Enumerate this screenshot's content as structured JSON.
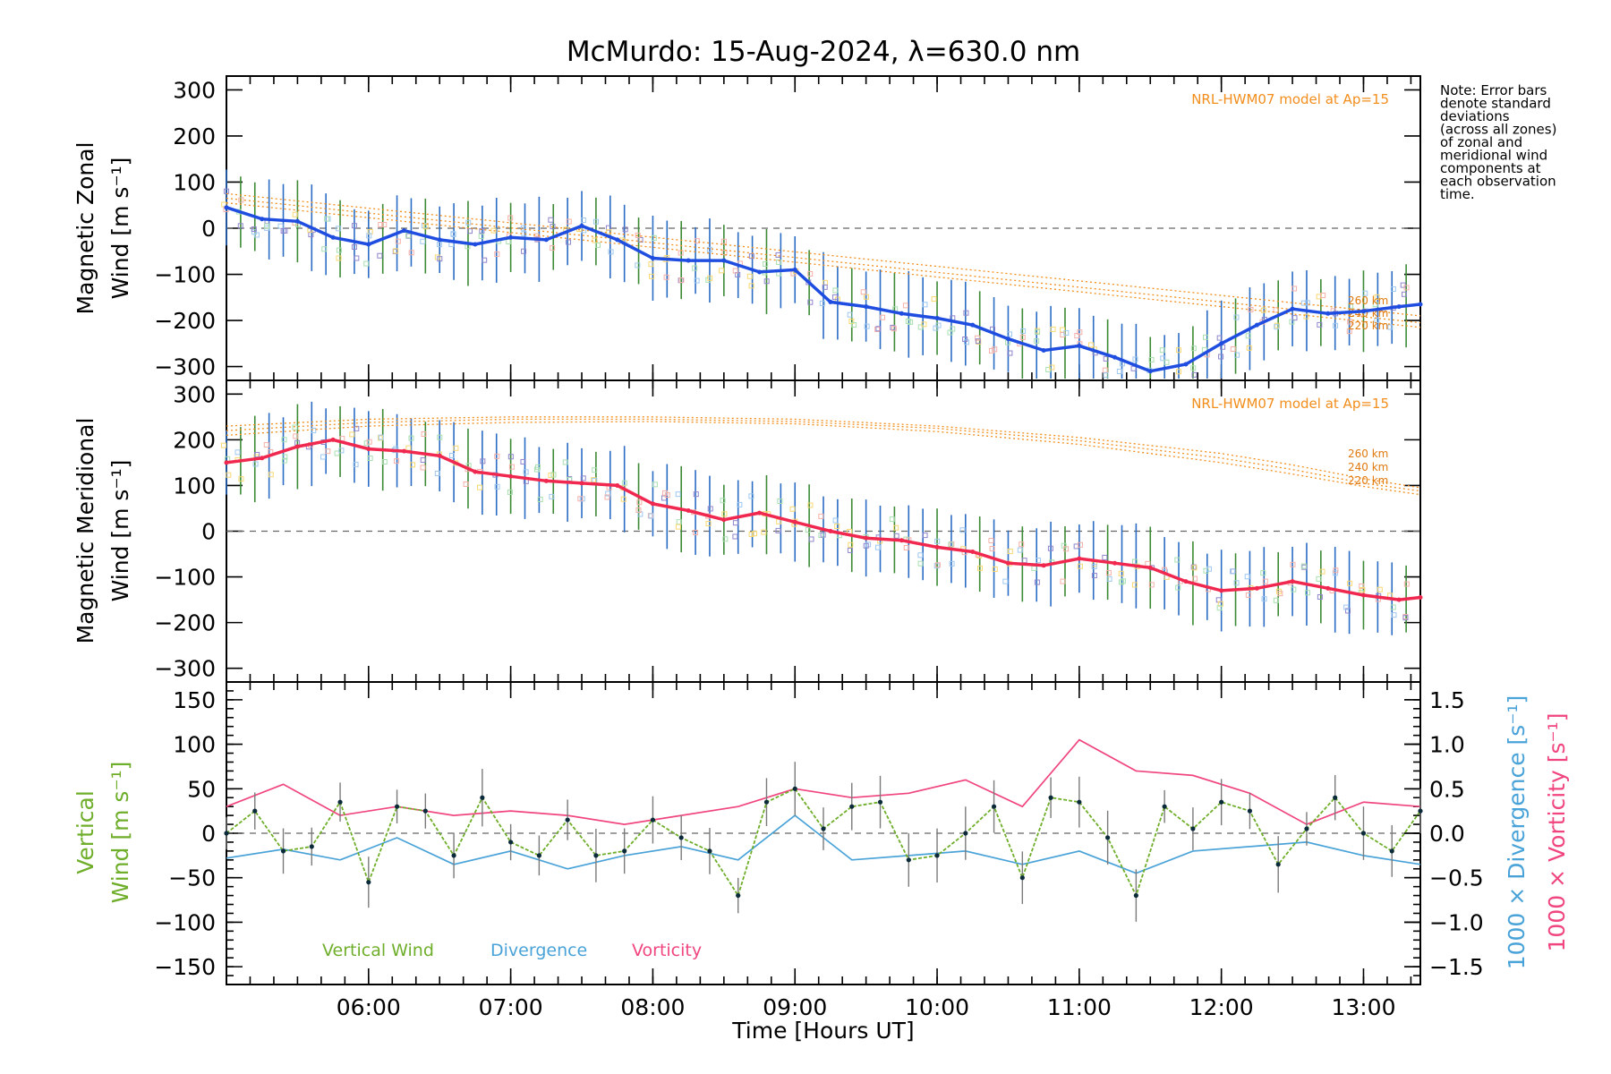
{
  "title": "McMurdo: 15-Aug-2024, λ=630.0 nm",
  "note_lines": [
    "Note: Error bars",
    "denote standard",
    "deviations",
    "(across all zones)",
    "of zonal and",
    "meridional wind",
    "components at",
    "each observation",
    "time."
  ],
  "colors": {
    "zonal": "#1f4de0",
    "meridional": "#f0284f",
    "vertical": "#6fae2a",
    "divergence": "#4aa3d8",
    "vorticity": "#f0457f",
    "model": "#f28e1c",
    "scatter": "#8f85cc",
    "errbar_blue": "#2b6cc4",
    "errbar_green": "#3d8a35",
    "errbar_gray": "#7a7a7a"
  },
  "chart_data": [
    {
      "type": "line",
      "panel": "top",
      "ylabel_lines": [
        "Magnetic Zonal",
        "Wind [m s⁻¹]"
      ],
      "ylim": [
        -330,
        330
      ],
      "yticks": [
        "300",
        "200",
        "100",
        "0",
        "−100",
        "−200",
        "−300"
      ],
      "model_label": "NRL-HWM07 model at Ap=15",
      "altitudes": [
        "260 km",
        "240 km",
        "220 km"
      ],
      "series": [
        {
          "x": [
            5.0,
            5.25,
            5.5,
            5.75,
            6.0,
            6.25,
            6.5,
            6.75,
            7.0,
            7.25,
            7.5,
            7.75,
            8.0,
            8.25,
            8.5,
            8.75,
            9.0,
            9.25,
            9.5,
            9.75,
            10.0,
            10.25,
            10.5,
            10.75,
            11.0,
            11.25,
            11.5,
            11.75,
            12.0,
            12.25,
            12.5,
            12.75,
            13.0,
            13.25,
            13.4
          ],
          "y": [
            45,
            20,
            15,
            -20,
            -35,
            -5,
            -25,
            -35,
            -20,
            -25,
            5,
            -25,
            -65,
            -70,
            -70,
            -95,
            -90,
            -160,
            -170,
            -185,
            -195,
            -210,
            -240,
            -265,
            -255,
            -280,
            -310,
            -295,
            -250,
            -210,
            -175,
            -185,
            -180,
            -170,
            -165
          ]
        }
      ],
      "model_series": [
        {
          "name": "260 km",
          "x": [
            5.0,
            13.4
          ],
          "y": [
            75,
            -190
          ]
        },
        {
          "name": "240 km",
          "x": [
            5.0,
            13.4
          ],
          "y": [
            65,
            -205
          ]
        },
        {
          "name": "220 km",
          "x": [
            5.0,
            13.4
          ],
          "y": [
            55,
            -215
          ]
        }
      ]
    },
    {
      "type": "line",
      "panel": "middle",
      "ylabel_lines": [
        "Magnetic Meridional",
        "Wind [m s⁻¹]"
      ],
      "ylim": [
        -330,
        330
      ],
      "yticks": [
        "300",
        "200",
        "100",
        "0",
        "−100",
        "−200",
        "−300"
      ],
      "model_label": "NRL-HWM07 model at Ap=15",
      "altitudes": [
        "260 km",
        "240 km",
        "220 km"
      ],
      "series": [
        {
          "x": [
            5.0,
            5.25,
            5.5,
            5.75,
            6.0,
            6.25,
            6.5,
            6.75,
            7.0,
            7.25,
            7.5,
            7.75,
            8.0,
            8.25,
            8.5,
            8.75,
            9.0,
            9.25,
            9.5,
            9.75,
            10.0,
            10.25,
            10.5,
            10.75,
            11.0,
            11.25,
            11.5,
            11.75,
            12.0,
            12.25,
            12.5,
            12.75,
            13.0,
            13.25,
            13.4
          ],
          "y": [
            150,
            160,
            185,
            200,
            180,
            175,
            165,
            130,
            120,
            110,
            105,
            100,
            60,
            45,
            25,
            40,
            20,
            0,
            -15,
            -20,
            -35,
            -45,
            -70,
            -75,
            -60,
            -70,
            -80,
            -110,
            -130,
            -125,
            -110,
            -125,
            -140,
            -150,
            -145
          ]
        }
      ],
      "model_series": [
        {
          "name": "260 km",
          "x": [
            5.0,
            6.0,
            7.0,
            8.0,
            9.0,
            10.0,
            11.0,
            12.0,
            12.5,
            13.0,
            13.4
          ],
          "y": [
            230,
            245,
            250,
            250,
            245,
            230,
            205,
            170,
            145,
            115,
            95
          ]
        },
        {
          "name": "240 km",
          "x": [
            5.0,
            6.0,
            7.0,
            8.0,
            9.0,
            10.0,
            11.0,
            12.0,
            12.5,
            13.0,
            13.4
          ],
          "y": [
            220,
            238,
            245,
            245,
            240,
            225,
            198,
            160,
            135,
            105,
            88
          ]
        },
        {
          "name": "220 km",
          "x": [
            5.0,
            6.0,
            7.0,
            8.0,
            9.0,
            10.0,
            11.0,
            12.0,
            12.5,
            13.0,
            13.4
          ],
          "y": [
            210,
            230,
            238,
            240,
            235,
            218,
            190,
            150,
            125,
            98,
            80
          ]
        }
      ]
    },
    {
      "type": "line",
      "panel": "bottom",
      "ylabel_lines": [
        "Vertical",
        "Wind [m s⁻¹]"
      ],
      "ylim": [
        -170,
        170
      ],
      "yticks": [
        "150",
        "100",
        "50",
        "0",
        "−50",
        "−100",
        "−150"
      ],
      "y2lim": [
        -1.7,
        1.7
      ],
      "y2ticks": [
        "1.5",
        "1.0",
        "0.5",
        "0.0",
        "−0.5",
        "−1.0",
        "−1.5"
      ],
      "y2label_div": "1000 × Divergence [s⁻¹]",
      "y2label_vort": "1000 × Vorticity [s⁻¹]",
      "xlim": [
        5.0,
        13.4
      ],
      "xticks": [
        "06:00",
        "07:00",
        "08:00",
        "09:00",
        "10:00",
        "11:00",
        "12:00",
        "13:00"
      ],
      "xlabel": "Time [Hours UT]",
      "legend": [
        "Vertical Wind",
        "Divergence",
        "Vorticity"
      ],
      "series": [
        {
          "name": "Vertical Wind",
          "x": [
            5.0,
            5.2,
            5.4,
            5.6,
            5.8,
            6.0,
            6.2,
            6.4,
            6.6,
            6.8,
            7.0,
            7.2,
            7.4,
            7.6,
            7.8,
            8.0,
            8.2,
            8.4,
            8.6,
            8.8,
            9.0,
            9.2,
            9.4,
            9.6,
            9.8,
            10.0,
            10.2,
            10.4,
            10.6,
            10.8,
            11.0,
            11.2,
            11.4,
            11.6,
            11.8,
            12.0,
            12.2,
            12.4,
            12.6,
            12.8,
            13.0,
            13.2,
            13.4
          ],
          "y": [
            0,
            25,
            -20,
            -15,
            35,
            -55,
            30,
            25,
            -25,
            40,
            -10,
            -25,
            15,
            -25,
            -20,
            15,
            -5,
            -20,
            -70,
            35,
            50,
            5,
            30,
            35,
            -30,
            -25,
            0,
            30,
            -50,
            40,
            35,
            -5,
            -70,
            30,
            5,
            35,
            25,
            -35,
            5,
            40,
            0,
            -20,
            25
          ]
        },
        {
          "name": "Divergence",
          "x": [
            5.0,
            5.4,
            5.8,
            6.2,
            6.6,
            7.0,
            7.4,
            7.8,
            8.2,
            8.6,
            9.0,
            9.4,
            9.8,
            10.2,
            10.6,
            11.0,
            11.4,
            11.8,
            12.2,
            12.6,
            13.0,
            13.4
          ],
          "y": [
            -0.28,
            -0.18,
            -0.3,
            -0.05,
            -0.35,
            -0.2,
            -0.4,
            -0.25,
            -0.15,
            -0.3,
            0.2,
            -0.3,
            -0.25,
            -0.2,
            -0.35,
            -0.2,
            -0.45,
            -0.2,
            -0.15,
            -0.1,
            -0.25,
            -0.35
          ]
        },
        {
          "name": "Vorticity",
          "x": [
            5.0,
            5.4,
            5.8,
            6.2,
            6.6,
            7.0,
            7.4,
            7.8,
            8.2,
            8.6,
            9.0,
            9.4,
            9.8,
            10.2,
            10.6,
            11.0,
            11.4,
            11.8,
            12.2,
            12.6,
            13.0,
            13.4
          ],
          "y": [
            0.3,
            0.55,
            0.2,
            0.3,
            0.2,
            0.25,
            0.2,
            0.1,
            0.2,
            0.3,
            0.5,
            0.4,
            0.45,
            0.6,
            0.3,
            1.05,
            0.7,
            0.65,
            0.45,
            0.1,
            0.35,
            0.3
          ]
        }
      ]
    }
  ]
}
